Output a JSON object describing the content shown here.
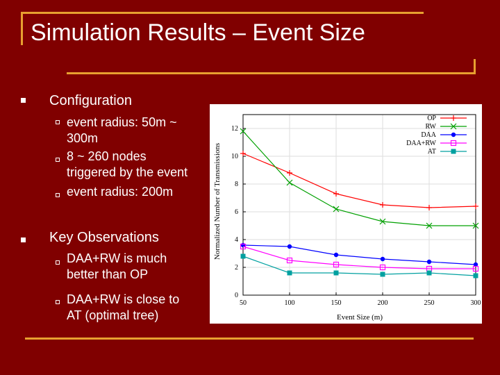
{
  "slide": {
    "title": "Simulation Results – Event Size",
    "bullets": [
      {
        "label": "Configuration",
        "subs": [
          [
            "event radius: 50m ~",
            "300m"
          ],
          [
            "8 ~ 260 nodes",
            "triggered by the event"
          ],
          [
            "event radius: 200m"
          ]
        ]
      },
      {
        "label": "Key Observations",
        "subs": [
          [
            "DAA+RW is much",
            "better than OP"
          ],
          [
            "DAA+RW is close to",
            "AT (optimal tree)"
          ]
        ]
      }
    ]
  },
  "chart_data": {
    "type": "line",
    "xlabel": "Event Size (m)",
    "ylabel": "Normalized Number of Transmissions",
    "x": [
      50,
      100,
      150,
      200,
      250,
      300
    ],
    "xticks": [
      "50",
      "100",
      "150",
      "200",
      "250",
      "300"
    ],
    "yticks": [
      "0",
      "2",
      "4",
      "6",
      "8",
      "10",
      "12"
    ],
    "xlim": [
      50,
      300
    ],
    "ylim": [
      0,
      13
    ],
    "legend_position": "top-right",
    "series": [
      {
        "name": "OP",
        "color": "#ff0000",
        "marker": "plus",
        "values": [
          10.2,
          8.8,
          7.3,
          6.5,
          6.3,
          6.4
        ]
      },
      {
        "name": "RW",
        "color": "#00a000",
        "marker": "x",
        "values": [
          11.8,
          8.1,
          6.2,
          5.3,
          5.0,
          5.0
        ]
      },
      {
        "name": "DAA",
        "color": "#0000ff",
        "marker": "star",
        "values": [
          3.6,
          3.5,
          2.9,
          2.6,
          2.4,
          2.2
        ]
      },
      {
        "name": "DAA+RW",
        "color": "#ff00ff",
        "marker": "open-square",
        "values": [
          3.5,
          2.5,
          2.2,
          2.0,
          1.9,
          1.9
        ]
      },
      {
        "name": "AT",
        "color": "#00a0a0",
        "marker": "filled-square",
        "values": [
          2.8,
          1.6,
          1.6,
          1.5,
          1.6,
          1.4
        ]
      }
    ]
  }
}
